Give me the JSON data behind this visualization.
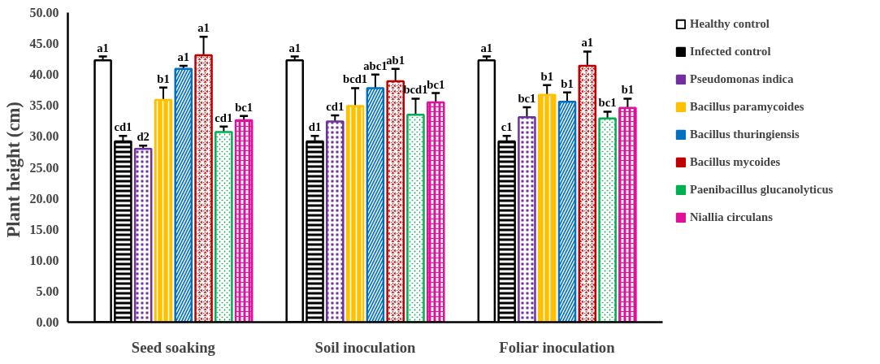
{
  "chart_data": {
    "type": "bar",
    "ylabel": "Plant height  (cm)",
    "categories": [
      "Seed soaking",
      "Soil inoculation",
      "Foliar inoculation"
    ],
    "ylim": [
      0,
      50
    ],
    "yticks": [
      {
        "value": 0,
        "label": "0.00"
      },
      {
        "value": 5,
        "label": "5.00"
      },
      {
        "value": 10,
        "label": "10.00"
      },
      {
        "value": 15,
        "label": "15.00"
      },
      {
        "value": 20,
        "label": "20.00"
      },
      {
        "value": 25,
        "label": "25.00"
      },
      {
        "value": 30,
        "label": "30.00"
      },
      {
        "value": 35,
        "label": "35.00"
      },
      {
        "value": 40,
        "label": "40.00"
      },
      {
        "value": 45,
        "label": "45.00"
      },
      {
        "value": 50,
        "label": "50.00"
      }
    ],
    "grid": false,
    "legend": "right",
    "series": [
      {
        "name": "Healthy control",
        "color": "#000000",
        "values": [
          42.3,
          42.3,
          42.3
        ],
        "errors": [
          0.6,
          0.6,
          0.6
        ],
        "value_labels": [
          "a1",
          "a1",
          "a1"
        ]
      },
      {
        "name": "Infected control",
        "color": "#000000",
        "values": [
          29.2,
          29.2,
          29.2
        ],
        "errors": [
          0.9,
          0.9,
          0.9
        ],
        "value_labels": [
          "cd1",
          "d1",
          "c1"
        ]
      },
      {
        "name": "Pseudomonas indica",
        "color": "#7030a0",
        "values": [
          28.0,
          32.4,
          33.1
        ],
        "errors": [
          0.5,
          1.0,
          1.6
        ],
        "value_labels": [
          "d2",
          "cd1",
          "bc1"
        ]
      },
      {
        "name": "Bacillus paramycoides",
        "color": "#ffc000",
        "values": [
          35.9,
          34.9,
          36.7
        ],
        "errors": [
          2.0,
          2.9,
          1.6
        ],
        "value_labels": [
          "b1",
          "bcd1",
          "b1"
        ]
      },
      {
        "name": "Bacillus thuringiensis",
        "color": "#0070c0",
        "values": [
          40.9,
          37.8,
          35.6
        ],
        "errors": [
          0.5,
          2.2,
          1.5
        ],
        "value_labels": [
          "a1",
          "abc1",
          "b1"
        ]
      },
      {
        "name": "Bacillus mycoides",
        "color": "#c00000",
        "values": [
          43.1,
          38.9,
          41.4
        ],
        "errors": [
          3.0,
          2.0,
          2.3
        ],
        "value_labels": [
          "a1",
          "ab1",
          "a1"
        ]
      },
      {
        "name": "Paenibacillus glucanolyticus",
        "color": "#00b050",
        "values": [
          30.7,
          33.5,
          32.9
        ],
        "errors": [
          0.9,
          2.6,
          1.1
        ],
        "value_labels": [
          "cd1",
          "bcd1",
          "bc1"
        ]
      },
      {
        "name": "Niallia circulans",
        "color": "#e0109b",
        "values": [
          32.6,
          35.5,
          34.6
        ],
        "errors": [
          0.7,
          1.5,
          1.5
        ],
        "value_labels": [
          "bc1",
          "bc1",
          "b1"
        ]
      }
    ]
  }
}
